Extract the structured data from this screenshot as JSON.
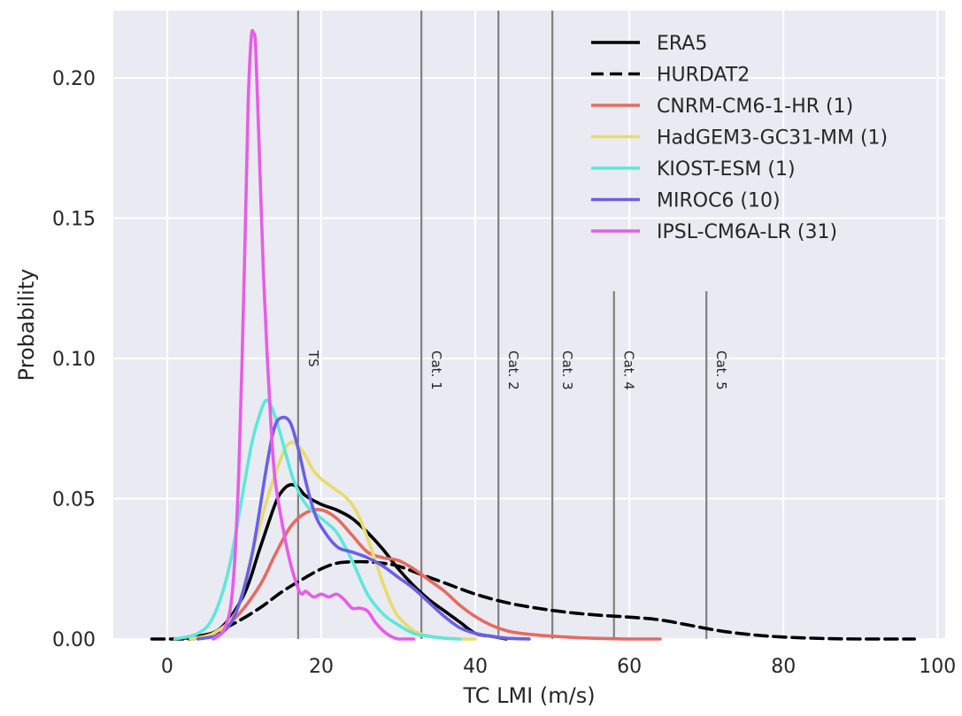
{
  "chart_data": {
    "type": "line",
    "title": "",
    "xlabel": "TC LMI (m/s)",
    "ylabel": "Probability",
    "xlim": [
      -7,
      101
    ],
    "ylim": [
      0,
      0.224
    ],
    "xticks": [
      0,
      20,
      40,
      60,
      80,
      100
    ],
    "yticks": [
      0.0,
      0.05,
      0.1,
      0.15,
      0.2
    ],
    "xtick_labels": [
      "0",
      "20",
      "40",
      "60",
      "80",
      "100"
    ],
    "ytick_labels": [
      "0.00",
      "0.05",
      "0.10",
      "0.15",
      "0.20"
    ],
    "grid": true,
    "background": "#eaeaf2",
    "legend_position": "top-right",
    "category_lines": [
      {
        "label": "TS",
        "x": 17,
        "full": true
      },
      {
        "label": "Cat. 1",
        "x": 33,
        "full": true
      },
      {
        "label": "Cat. 2",
        "x": 43,
        "full": true
      },
      {
        "label": "Cat. 3",
        "x": 50,
        "full": true
      },
      {
        "label": "Cat. 4",
        "x": 58,
        "full": false,
        "y_top": 0.124
      },
      {
        "label": "Cat. 5",
        "x": 70,
        "full": false,
        "y_top": 0.124
      }
    ],
    "series": [
      {
        "name": "ERA5",
        "color": "#000000",
        "dash": "solid",
        "x": [
          1,
          4,
          7,
          10,
          12,
          14,
          15,
          16,
          17,
          18,
          20,
          22,
          24,
          26,
          28,
          30,
          32,
          34,
          36,
          38,
          40,
          42,
          44
        ],
        "y": [
          0.0,
          0.001,
          0.004,
          0.016,
          0.032,
          0.048,
          0.053,
          0.055,
          0.054,
          0.051,
          0.048,
          0.046,
          0.043,
          0.038,
          0.032,
          0.025,
          0.019,
          0.014,
          0.01,
          0.006,
          0.002,
          0.001,
          0.0
        ]
      },
      {
        "name": "HURDAT2",
        "color": "#000000",
        "dash": "dashed",
        "x": [
          -2,
          3,
          6,
          9,
          12,
          15,
          18,
          20,
          22,
          24,
          26,
          28,
          30,
          33,
          36,
          40,
          44,
          48,
          52,
          56,
          60,
          64,
          68,
          72,
          76,
          80,
          85,
          90,
          97
        ],
        "y": [
          0.0,
          0.0,
          0.002,
          0.006,
          0.011,
          0.017,
          0.022,
          0.025,
          0.027,
          0.0275,
          0.0275,
          0.027,
          0.026,
          0.023,
          0.02,
          0.016,
          0.013,
          0.011,
          0.0095,
          0.0085,
          0.0078,
          0.0068,
          0.0048,
          0.0028,
          0.0015,
          0.0007,
          0.0002,
          0.0,
          0.0
        ]
      },
      {
        "name": "CNRM-CM6-1-HR (1)",
        "color": "#e86a5f",
        "dash": "solid",
        "x": [
          3,
          6,
          9,
          12,
          14,
          16,
          18,
          20,
          22,
          24,
          26,
          28,
          30,
          32,
          34,
          36,
          38,
          40,
          42,
          44,
          46,
          50,
          55,
          60,
          64
        ],
        "y": [
          0.0,
          0.002,
          0.008,
          0.019,
          0.03,
          0.04,
          0.045,
          0.046,
          0.043,
          0.037,
          0.031,
          0.029,
          0.028,
          0.025,
          0.021,
          0.017,
          0.012,
          0.008,
          0.005,
          0.003,
          0.002,
          0.001,
          0.0003,
          0.0,
          0.0
        ]
      },
      {
        "name": "HadGEM3-GC31-MM (1)",
        "color": "#e8dc6a",
        "dash": "solid",
        "x": [
          3,
          6,
          9,
          11,
          13,
          15,
          16,
          17,
          18,
          19,
          20,
          21,
          22,
          23,
          24,
          25,
          26,
          27,
          28,
          29,
          30,
          32,
          34,
          36,
          38,
          40
        ],
        "y": [
          0.0,
          0.002,
          0.01,
          0.03,
          0.05,
          0.066,
          0.07,
          0.069,
          0.065,
          0.06,
          0.057,
          0.055,
          0.053,
          0.051,
          0.048,
          0.043,
          0.036,
          0.028,
          0.02,
          0.013,
          0.008,
          0.003,
          0.001,
          0.0003,
          0.0,
          0.0
        ]
      },
      {
        "name": "KIOST-ESM (1)",
        "color": "#5ce8dc",
        "dash": "solid",
        "x": [
          1,
          4,
          6,
          8,
          10,
          11,
          12,
          12.8,
          13.5,
          14.5,
          15.5,
          16.5,
          18,
          20,
          22,
          24,
          26,
          28,
          30,
          32,
          34,
          36,
          38
        ],
        "y": [
          0.0,
          0.002,
          0.008,
          0.025,
          0.055,
          0.07,
          0.08,
          0.085,
          0.083,
          0.075,
          0.065,
          0.056,
          0.048,
          0.043,
          0.038,
          0.028,
          0.016,
          0.009,
          0.005,
          0.002,
          0.001,
          0.0003,
          0.0
        ]
      },
      {
        "name": "MIROC6 (10)",
        "color": "#6a5fe8",
        "dash": "solid",
        "x": [
          4,
          7,
          9,
          11,
          13,
          14,
          15,
          16,
          17,
          18,
          19,
          20,
          22,
          24,
          26,
          28,
          30,
          32,
          34,
          36,
          38,
          40,
          42,
          44,
          47
        ],
        "y": [
          0.0,
          0.002,
          0.01,
          0.03,
          0.063,
          0.076,
          0.079,
          0.077,
          0.068,
          0.056,
          0.046,
          0.04,
          0.033,
          0.031,
          0.029,
          0.026,
          0.022,
          0.018,
          0.013,
          0.008,
          0.004,
          0.002,
          0.001,
          0.0003,
          0.0
        ]
      },
      {
        "name": "IPSL-CM6A-LR (31)",
        "color": "#e85ce8",
        "dash": "solid",
        "x": [
          6,
          7.5,
          8.5,
          9.3,
          10,
          10.5,
          10.9,
          11.2,
          11.5,
          12,
          12.5,
          13,
          13.5,
          14,
          15,
          16,
          17,
          17.5,
          18,
          19,
          20,
          21,
          22,
          23,
          24,
          25,
          26,
          27,
          28,
          29,
          30,
          31,
          32
        ],
        "y": [
          0.0,
          0.004,
          0.018,
          0.06,
          0.13,
          0.19,
          0.214,
          0.216,
          0.21,
          0.17,
          0.13,
          0.1,
          0.075,
          0.057,
          0.04,
          0.027,
          0.018,
          0.016,
          0.017,
          0.015,
          0.016,
          0.015,
          0.016,
          0.014,
          0.011,
          0.011,
          0.01,
          0.006,
          0.003,
          0.001,
          0.0,
          0.0,
          0.0
        ]
      }
    ]
  }
}
